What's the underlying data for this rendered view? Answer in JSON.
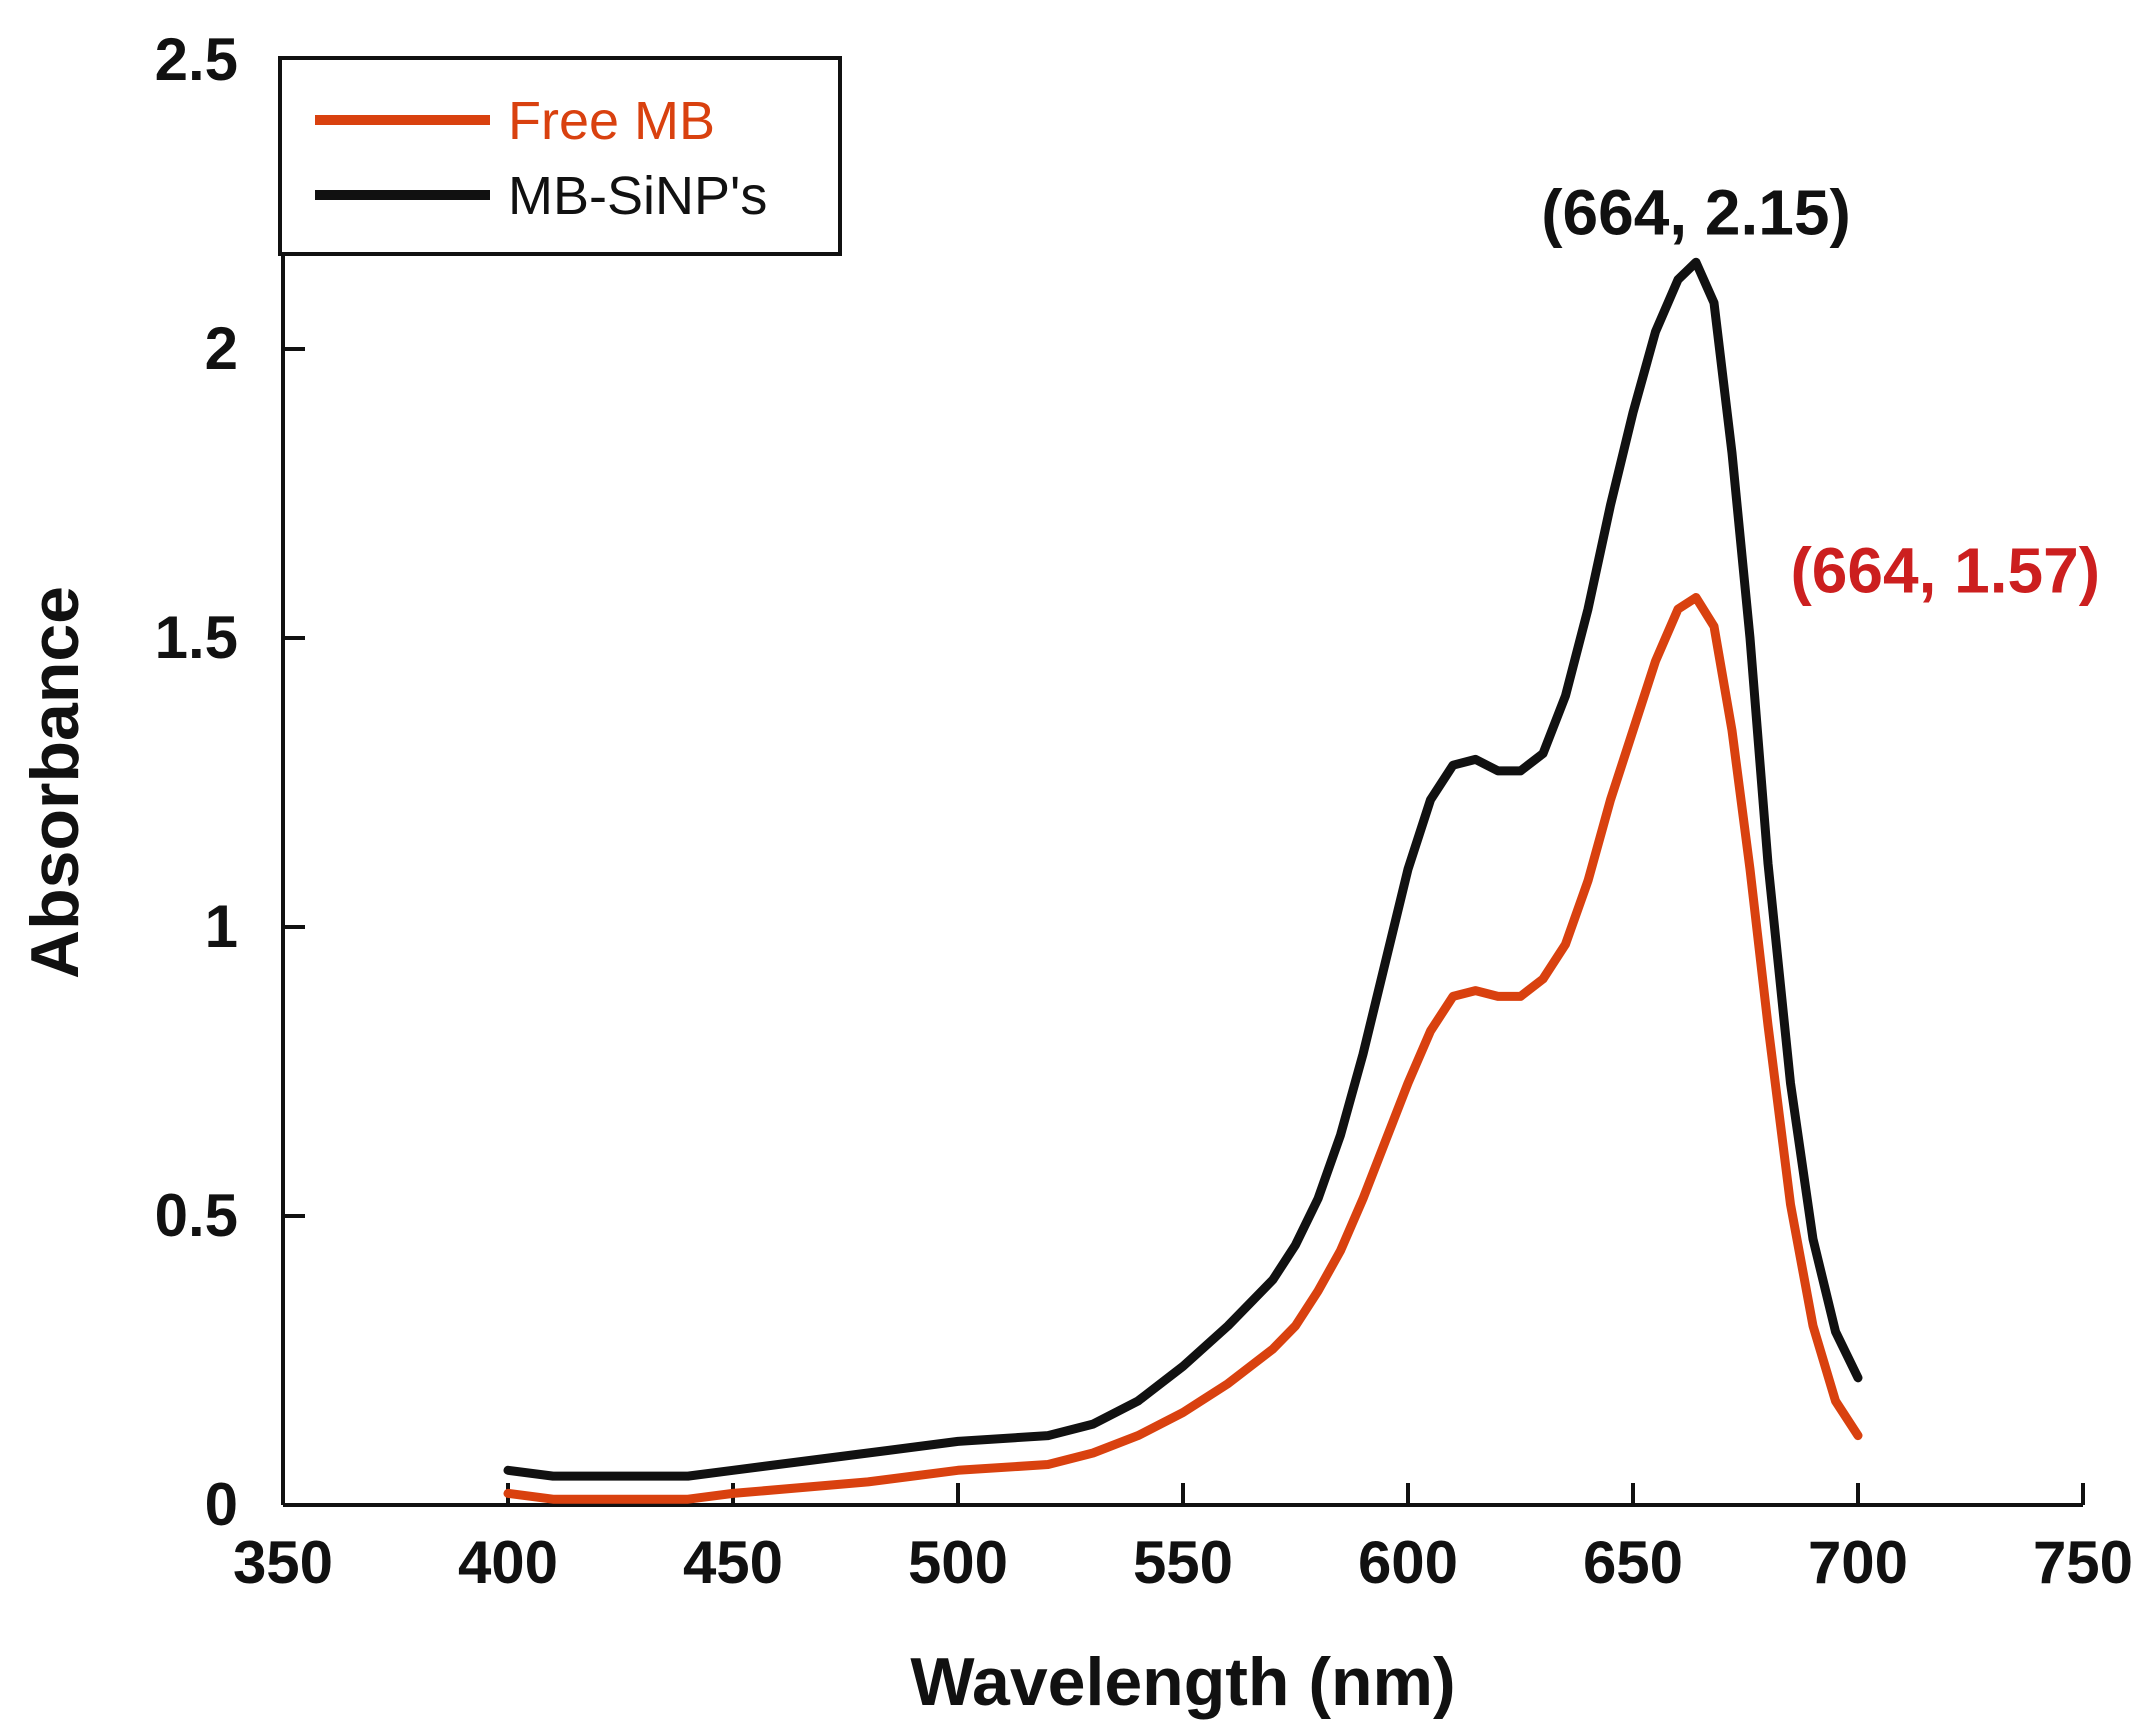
{
  "chart_data": {
    "type": "line",
    "title": "",
    "xlabel": "Wavelength (nm)",
    "ylabel": "Absorbance",
    "xlim": [
      350,
      750
    ],
    "ylim": [
      0,
      2.5
    ],
    "xticks": [
      "350",
      "400",
      "450",
      "500",
      "550",
      "600",
      "650",
      "700",
      "750"
    ],
    "yticks": [
      "0",
      "0.5",
      "1",
      "1.5",
      "2",
      "2.5"
    ],
    "grid": false,
    "legend_position": "top-left",
    "series": [
      {
        "name": "Free MB",
        "color": "#d9410f",
        "x": [
          400,
          410,
          420,
          440,
          450,
          480,
          500,
          520,
          530,
          540,
          550,
          560,
          570,
          575,
          580,
          585,
          590,
          595,
          600,
          605,
          610,
          615,
          620,
          625,
          630,
          635,
          640,
          645,
          650,
          655,
          660,
          664,
          668,
          672,
          676,
          680,
          685,
          690,
          695,
          700
        ],
        "values": [
          0.02,
          0.01,
          0.01,
          0.01,
          0.02,
          0.04,
          0.06,
          0.07,
          0.09,
          0.12,
          0.16,
          0.21,
          0.27,
          0.31,
          0.37,
          0.44,
          0.53,
          0.63,
          0.73,
          0.82,
          0.88,
          0.89,
          0.88,
          0.88,
          0.91,
          0.97,
          1.08,
          1.22,
          1.34,
          1.46,
          1.55,
          1.57,
          1.52,
          1.34,
          1.1,
          0.83,
          0.52,
          0.31,
          0.18,
          0.12
        ]
      },
      {
        "name": "MB-SiNP's",
        "color": "#111111",
        "x": [
          400,
          410,
          420,
          440,
          450,
          480,
          500,
          520,
          530,
          540,
          550,
          560,
          570,
          575,
          580,
          585,
          590,
          595,
          600,
          605,
          610,
          615,
          620,
          625,
          630,
          635,
          640,
          645,
          650,
          655,
          660,
          664,
          668,
          672,
          676,
          680,
          685,
          690,
          695,
          700
        ],
        "values": [
          0.06,
          0.05,
          0.05,
          0.05,
          0.06,
          0.09,
          0.11,
          0.12,
          0.14,
          0.18,
          0.24,
          0.31,
          0.39,
          0.45,
          0.53,
          0.64,
          0.78,
          0.94,
          1.1,
          1.22,
          1.28,
          1.29,
          1.27,
          1.27,
          1.3,
          1.4,
          1.55,
          1.73,
          1.89,
          2.03,
          2.12,
          2.15,
          2.08,
          1.82,
          1.5,
          1.11,
          0.73,
          0.46,
          0.3,
          0.22
        ]
      }
    ],
    "annotations": [
      {
        "text": "(664, 2.15)",
        "x": 664,
        "y": 2.15,
        "color": "#111111"
      },
      {
        "text": "(664, 1.57)",
        "x": 664,
        "y": 1.57,
        "color": "#cc1f1f"
      }
    ]
  }
}
